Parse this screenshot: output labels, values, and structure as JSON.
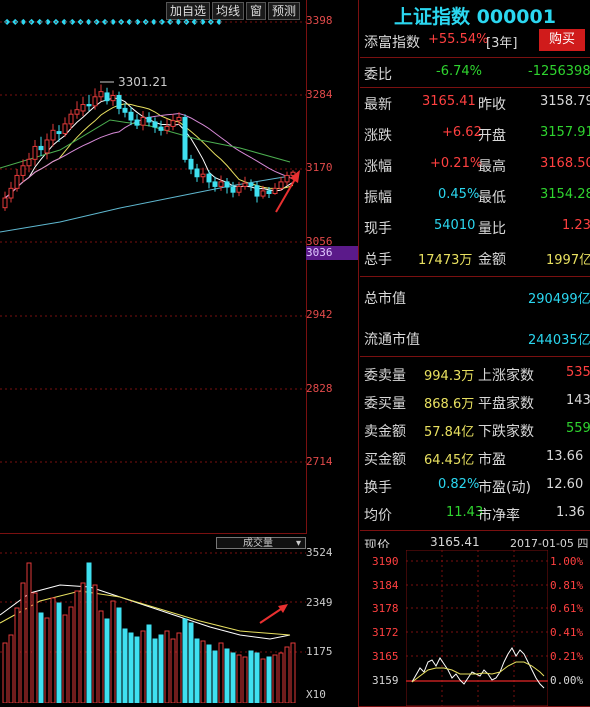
{
  "toolbar": {
    "add_watchlist": "加自选",
    "ma": "均线",
    "window": "窗",
    "forecast": "预测"
  },
  "price_axis": [
    "3398",
    "3284",
    "3170",
    "3056",
    "2942",
    "2828",
    "2714"
  ],
  "price_axis_highlight": "3036",
  "peak_label": "3301.21",
  "volume": {
    "selector_label": "成交量",
    "axis": [
      "3524",
      "2349",
      "1175"
    ],
    "unit": "X10"
  },
  "quote": {
    "title": "上证指数 000001",
    "fortune_label": "添富指数",
    "fortune_value": "+55.54%",
    "fortune_period": "[3年]",
    "buy_button": "购买",
    "committee_ratio_label": "委比",
    "committee_ratio_pct": "-6.74%",
    "committee_ratio_value": "-1256398",
    "latest_label": "最新",
    "latest": "3165.41",
    "prev_close_label": "昨收",
    "prev_close": "3158.79",
    "change_label": "涨跌",
    "change": "+6.62",
    "open_label": "开盘",
    "open": "3157.91",
    "change_pct_label": "涨幅",
    "change_pct": "+0.21%",
    "high_label": "最高",
    "high": "3168.50",
    "amplitude_label": "振幅",
    "amplitude": "0.45%",
    "low_label": "最低",
    "low": "3154.28",
    "current_hand_label": "现手",
    "current_hand": "54010",
    "volume_ratio_label": "量比",
    "volume_ratio": "1.23",
    "total_hand_label": "总手",
    "total_hand": "17473万",
    "amount_label": "金额",
    "amount": "1997亿",
    "total_mktcap_label": "总市值",
    "total_mktcap": "290499亿",
    "float_mktcap_label": "流通市值",
    "float_mktcap": "244035亿",
    "sell_vol_label": "委卖量",
    "sell_vol": "994.3万",
    "up_count_label": "上涨家数",
    "up_count": "535",
    "buy_vol_label": "委买量",
    "buy_vol": "868.6万",
    "flat_count_label": "平盘家数",
    "flat_count": "143",
    "sell_amt_label": "卖金额",
    "sell_amt": "57.84亿",
    "down_count_label": "下跌家数",
    "down_count": "559",
    "buy_amt_label": "买金额",
    "buy_amt": "64.45亿",
    "pe_label": "市盈",
    "pe": "13.66",
    "turnover_label": "换手",
    "turnover": "0.82%",
    "pe_dyn_label": "市盈(动)",
    "pe_dyn": "12.60",
    "avg_price_label": "均价",
    "avg_price": "11.43",
    "pb_label": "市净率",
    "pb": "1.36",
    "partial_label": "现价",
    "partial_price": "3165.41",
    "partial_date": "2017-01-05 四"
  },
  "mini_chart": {
    "left_axis": [
      "3190",
      "3184",
      "3178",
      "3172",
      "3165",
      "3159"
    ],
    "right_axis": [
      "1.00%",
      "0.81%",
      "0.61%",
      "0.41%",
      "0.21%",
      "0.00%"
    ]
  },
  "colors": {
    "up": "#e23a3a",
    "down": "#3fe0f0",
    "ma5": "#ffffff",
    "ma10": "#e8e060",
    "ma20": "#d78ad7",
    "ma60": "#4caf50",
    "ma120": "#5fb8d0"
  }
}
